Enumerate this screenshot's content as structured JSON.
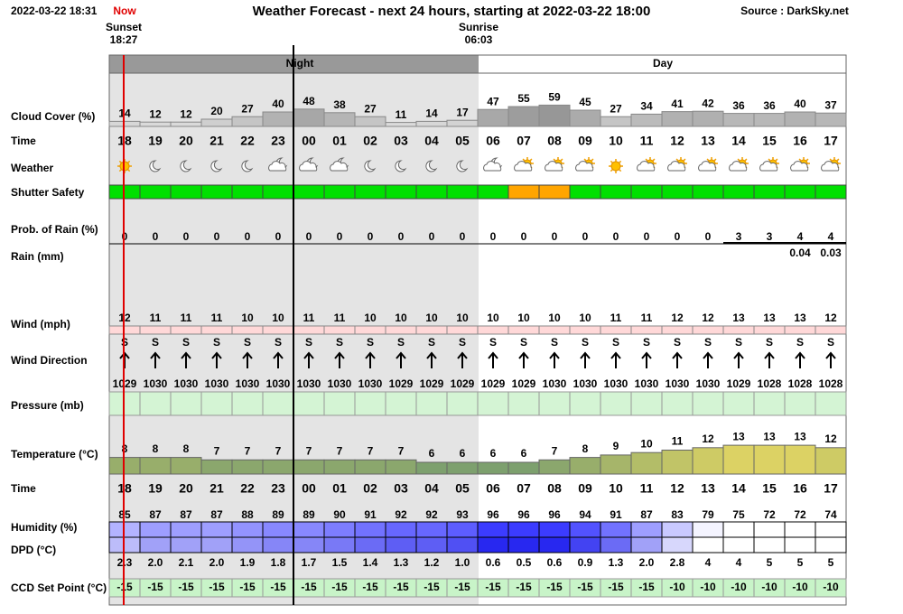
{
  "header": {
    "timestamp": "2022-03-22 18:31",
    "now": "Now",
    "title": "Weather Forecast - next 24 hours, starting at 2022-03-22 18:00",
    "source": "Source : DarkSky.net"
  },
  "sun": {
    "sunset_label": "Sunset",
    "sunset_time": "18:27",
    "sunrise_label": "Sunrise",
    "sunrise_time": "06:03"
  },
  "periods": {
    "night": "Night",
    "day": "Day"
  },
  "row_labels": {
    "cloud": "Cloud Cover (%)",
    "time": "Time",
    "weather": "Weather",
    "shutter": "Shutter Safety",
    "rain_prob": "Prob. of Rain (%)",
    "rain": "Rain (mm)",
    "wind": "Wind (mph)",
    "wind_dir": "Wind Direction",
    "pressure": "Pressure (mb)",
    "temperature": "Temperature (°C)",
    "humidity": "Humidity (%)",
    "dpd": "DPD (°C)",
    "ccd": "CCD Set Point (°C)"
  },
  "hours": [
    "18",
    "19",
    "20",
    "21",
    "22",
    "23",
    "00",
    "01",
    "02",
    "03",
    "04",
    "05",
    "06",
    "07",
    "08",
    "09",
    "10",
    "11",
    "12",
    "13",
    "14",
    "15",
    "16",
    "17"
  ],
  "cloud_cover": [
    14,
    12,
    12,
    20,
    27,
    40,
    48,
    38,
    27,
    11,
    14,
    17,
    47,
    55,
    59,
    45,
    27,
    34,
    41,
    42,
    36,
    36,
    40,
    37
  ],
  "weather": [
    "sun",
    "moon",
    "moon",
    "moon",
    "moon",
    "moon-cloud",
    "moon-cloud",
    "moon-cloud",
    "moon",
    "moon",
    "moon",
    "moon",
    "moon-cloud",
    "sun-cloud",
    "sun-cloud",
    "sun-cloud",
    "sun",
    "sun-cloud",
    "sun-cloud",
    "sun-cloud",
    "sun-cloud",
    "sun-cloud",
    "sun-cloud",
    "sun-cloud"
  ],
  "shutter_safety": [
    "#00e000",
    "#00e000",
    "#00e000",
    "#00e000",
    "#00e000",
    "#00e000",
    "#00e000",
    "#00e000",
    "#00e000",
    "#00e000",
    "#00e000",
    "#00e000",
    "#00e000",
    "#ffa500",
    "#ffa500",
    "#00e000",
    "#00e000",
    "#00e000",
    "#00e000",
    "#00e000",
    "#00e000",
    "#00e000",
    "#00e000",
    "#00e000"
  ],
  "rain_probability": [
    0,
    0,
    0,
    0,
    0,
    0,
    0,
    0,
    0,
    0,
    0,
    0,
    0,
    0,
    0,
    0,
    0,
    0,
    0,
    0,
    3,
    3,
    4,
    4
  ],
  "rain_mm": [
    null,
    null,
    null,
    null,
    null,
    null,
    null,
    null,
    null,
    null,
    null,
    null,
    null,
    null,
    null,
    null,
    null,
    null,
    null,
    null,
    null,
    null,
    0.04,
    0.03
  ],
  "wind": [
    12,
    11,
    11,
    11,
    10,
    10,
    11,
    11,
    10,
    10,
    10,
    10,
    10,
    10,
    10,
    10,
    11,
    11,
    12,
    12,
    13,
    13,
    13,
    12
  ],
  "wind_direction": [
    "S",
    "S",
    "S",
    "S",
    "S",
    "S",
    "S",
    "S",
    "S",
    "S",
    "S",
    "S",
    "S",
    "S",
    "S",
    "S",
    "S",
    "S",
    "S",
    "S",
    "S",
    "S",
    "S",
    "S"
  ],
  "pressure": [
    1029,
    1030,
    1030,
    1030,
    1030,
    1030,
    1030,
    1030,
    1030,
    1029,
    1029,
    1029,
    1029,
    1029,
    1030,
    1030,
    1030,
    1030,
    1030,
    1030,
    1029,
    1028,
    1028,
    1028
  ],
  "temperature": [
    8,
    8,
    8,
    7,
    7,
    7,
    7,
    7,
    7,
    7,
    6,
    6,
    6,
    6,
    7,
    8,
    9,
    10,
    11,
    12,
    13,
    13,
    13,
    12
  ],
  "humidity": [
    85,
    87,
    87,
    87,
    88,
    89,
    89,
    90,
    91,
    92,
    92,
    93,
    96,
    96,
    96,
    94,
    91,
    87,
    83,
    79,
    75,
    72,
    72,
    74
  ],
  "dpd": [
    "2.3",
    "2.0",
    "2.1",
    "2.0",
    "1.9",
    "1.8",
    "1.7",
    "1.5",
    "1.4",
    "1.3",
    "1.2",
    "1.0",
    "0.6",
    "0.5",
    "0.6",
    "0.9",
    "1.3",
    "2.0",
    "2.8",
    "4",
    "4",
    "5",
    "5",
    "5"
  ],
  "ccd_set_point": [
    -15,
    -15,
    -15,
    -15,
    -15,
    -15,
    -15,
    -15,
    -15,
    -15,
    -15,
    -15,
    -15,
    -15,
    -15,
    -15,
    -15,
    -15,
    -10,
    -10,
    -10,
    -10,
    -10,
    -10
  ]
}
